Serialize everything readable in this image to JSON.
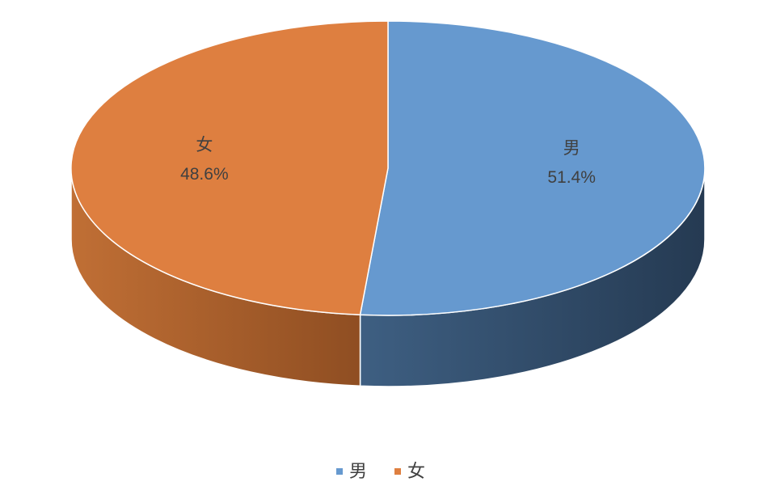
{
  "chart_data": {
    "type": "pie",
    "style": "3d",
    "categories": [
      "男",
      "女"
    ],
    "values": [
      51.4,
      48.6
    ],
    "value_labels": [
      "51.4%",
      "48.6%"
    ],
    "colors": [
      "#6699CF",
      "#DE7F40"
    ],
    "side_colors": [
      "#2C4A6B",
      "#B0642E"
    ],
    "legend": {
      "position": "bottom",
      "entries": [
        "男",
        "女"
      ]
    }
  }
}
